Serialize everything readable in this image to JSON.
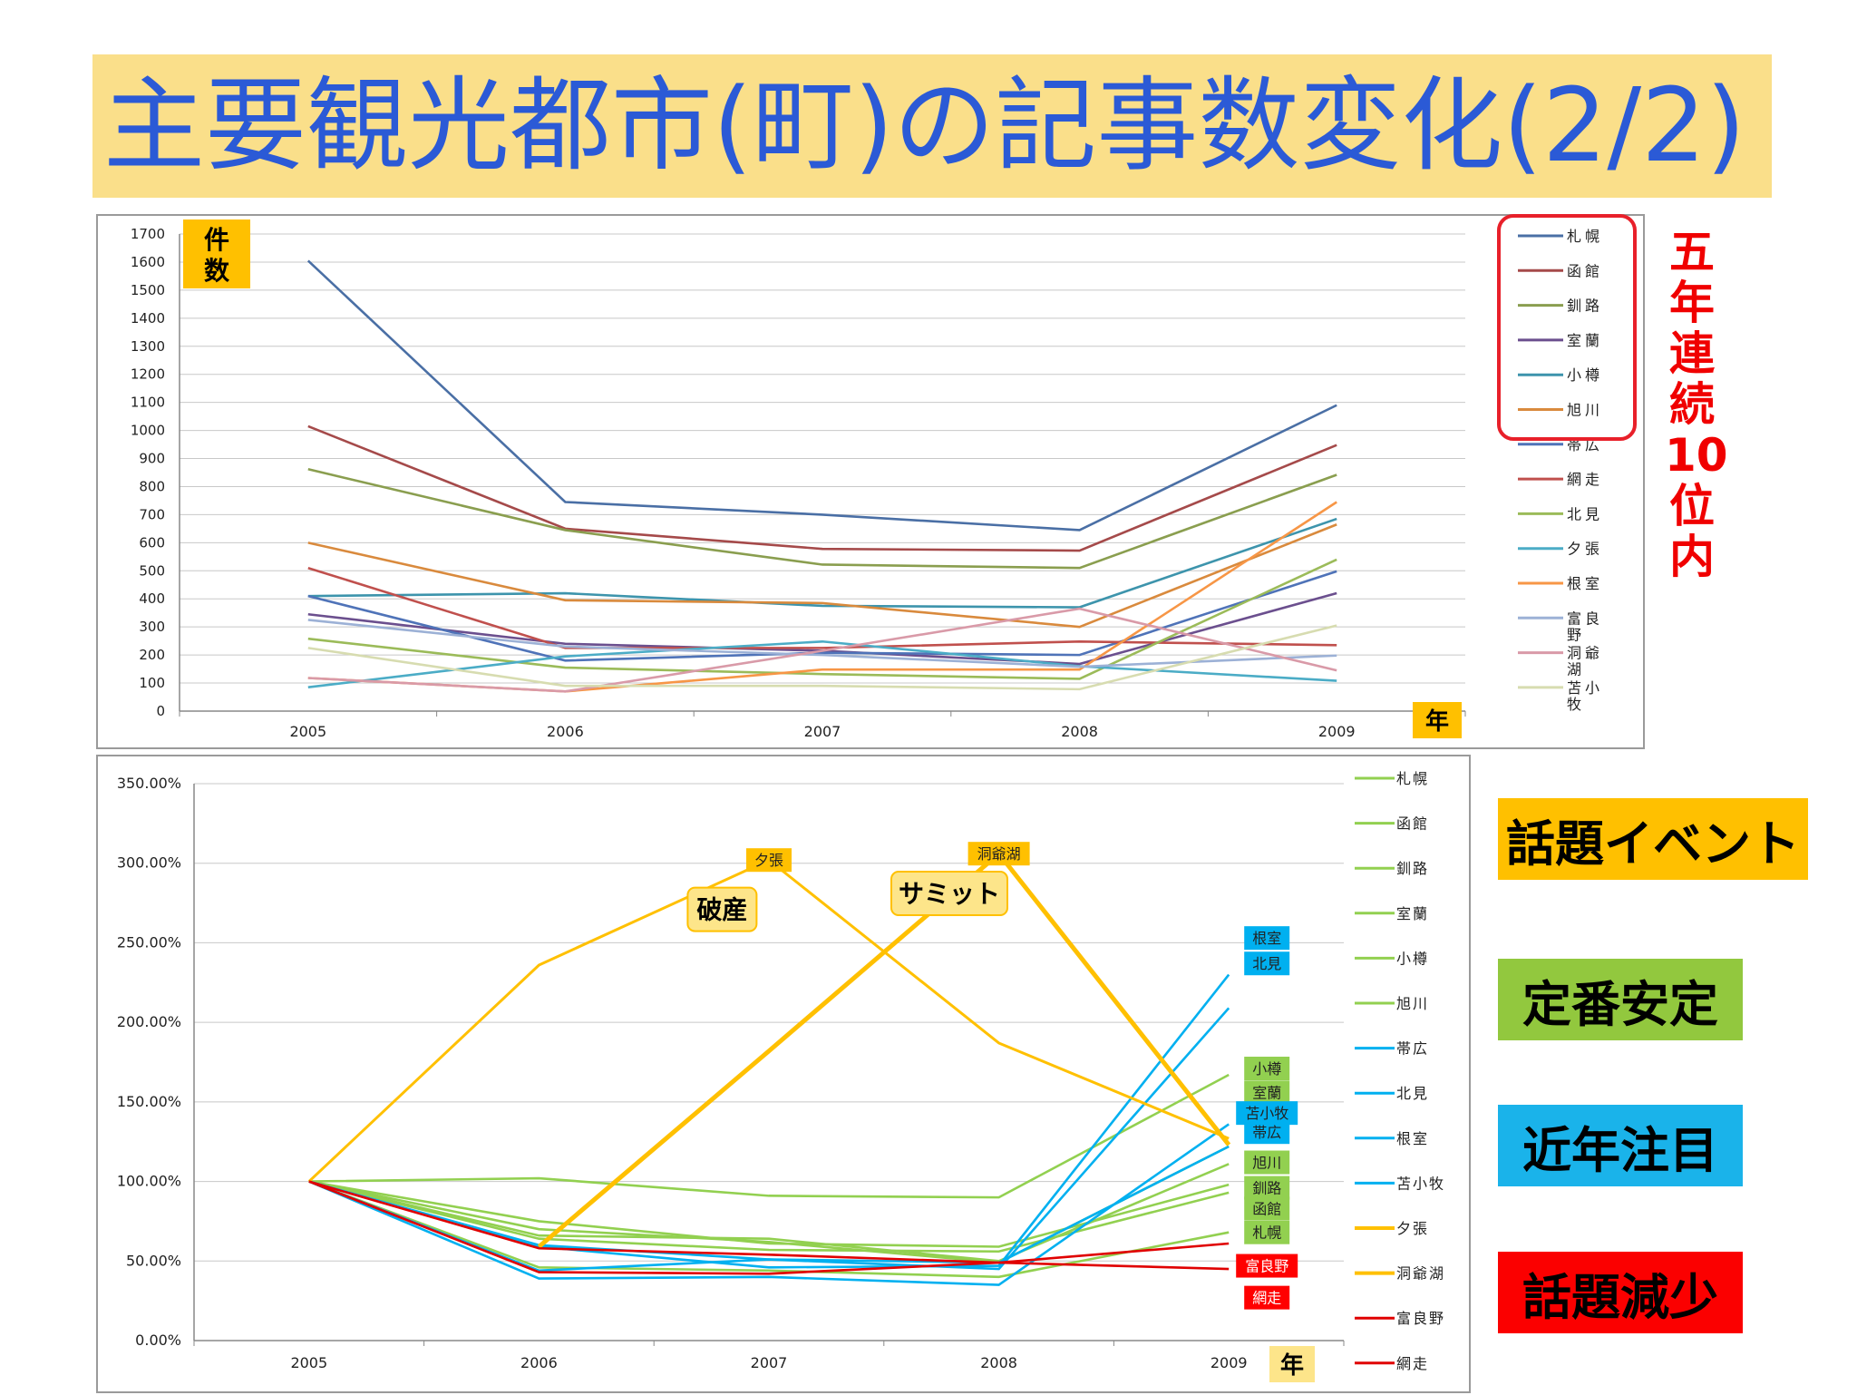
{
  "title": "主要観光都市(町)の記事数変化(2/2)",
  "colors": {
    "title_bg": "#fadf8a",
    "title_text": "#2b5ad6",
    "highlight_red": "#e8202a"
  },
  "side_note": "五年連続10位内",
  "categories_legend": [
    {
      "label": "話題イベント",
      "color": "#ffc000"
    },
    {
      "label": "定番安定",
      "color": "#92c83e"
    },
    {
      "label": "近年注目",
      "color": "#1ab3ea"
    },
    {
      "label": "話題減少",
      "color": "#fb0000"
    }
  ],
  "chart_data": [
    {
      "type": "line",
      "ylabel": "件数",
      "xlabel": "年",
      "ylim": [
        0,
        1700
      ],
      "yticks": [
        0,
        100,
        200,
        300,
        400,
        500,
        600,
        700,
        800,
        900,
        1000,
        1100,
        1200,
        1300,
        1400,
        1500,
        1600,
        1700
      ],
      "x": [
        "2005",
        "2006",
        "2007",
        "2008",
        "2009"
      ],
      "grid": "horizontal",
      "legend_position": "right",
      "series": [
        {
          "name": "札幌",
          "color": "#4a6fa5",
          "values": [
            1605,
            745,
            700,
            645,
            1090
          ]
        },
        {
          "name": "函館",
          "color": "#a54a4a",
          "values": [
            1015,
            650,
            578,
            572,
            948
          ]
        },
        {
          "name": "釧路",
          "color": "#8a9e4f",
          "values": [
            862,
            645,
            522,
            510,
            842
          ]
        },
        {
          "name": "室蘭",
          "color": "#6b4f8e",
          "values": [
            345,
            240,
            215,
            168,
            420
          ]
        },
        {
          "name": "小樽",
          "color": "#3d94ac",
          "values": [
            410,
            420,
            375,
            370,
            685
          ]
        },
        {
          "name": "旭川",
          "color": "#d98a3d",
          "values": [
            600,
            395,
            385,
            300,
            665
          ]
        },
        {
          "name": "帯広",
          "color": "#4f73b8",
          "values": [
            410,
            180,
            208,
            200,
            498
          ]
        },
        {
          "name": "網走",
          "color": "#c0504d",
          "values": [
            510,
            225,
            225,
            248,
            235
          ]
        },
        {
          "name": "北見",
          "color": "#9bbb59",
          "values": [
            258,
            155,
            132,
            115,
            540
          ]
        },
        {
          "name": "夕張",
          "color": "#4bacc6",
          "values": [
            85,
            195,
            248,
            160,
            108
          ]
        },
        {
          "name": "根室",
          "color": "#f79646",
          "values": [
            118,
            70,
            148,
            148,
            745
          ]
        },
        {
          "name": "富良野",
          "color": "#9cb1d6",
          "values": [
            325,
            230,
            200,
            158,
            198
          ]
        },
        {
          "name": "洞爺湖",
          "color": "#d99aa8",
          "values": [
            118,
            70,
            215,
            365,
            145
          ]
        },
        {
          "name": "苫小牧",
          "color": "#d7dcb0",
          "values": [
            225,
            90,
            90,
            78,
            305
          ]
        }
      ]
    },
    {
      "type": "line",
      "xlabel": "年",
      "ylim": [
        0,
        350
      ],
      "yticks": [
        "0.00%",
        "50.00%",
        "100.00%",
        "150.00%",
        "200.00%",
        "250.00%",
        "300.00%",
        "350.00%"
      ],
      "x": [
        "2005",
        "2006",
        "2007",
        "2008",
        "2009"
      ],
      "grid": "horizontal",
      "legend_position": "right",
      "series": [
        {
          "name": "札幌",
          "color": "#92d050",
          "values": [
            100,
            46,
            44,
            40,
            68
          ]
        },
        {
          "name": "函館",
          "color": "#92d050",
          "values": [
            100,
            64,
            57,
            56,
            93
          ]
        },
        {
          "name": "釧路",
          "color": "#92d050",
          "values": [
            100,
            75,
            61,
            59,
            98
          ]
        },
        {
          "name": "室蘭",
          "color": "#92d050",
          "values": [
            100,
            70,
            62,
            49,
            122
          ]
        },
        {
          "name": "小樽",
          "color": "#92d050",
          "values": [
            100,
            102,
            91,
            90,
            167
          ]
        },
        {
          "name": "旭川",
          "color": "#92d050",
          "values": [
            100,
            66,
            64,
            50,
            111
          ]
        },
        {
          "name": "帯広",
          "color": "#00b0f0",
          "values": [
            100,
            44,
            51,
            49,
            122
          ]
        },
        {
          "name": "北見",
          "color": "#00b0f0",
          "values": [
            100,
            60,
            51,
            45,
            209
          ]
        },
        {
          "name": "根室",
          "color": "#00b0f0",
          "values": [
            100,
            59,
            46,
            47,
            230
          ]
        },
        {
          "name": "苫小牧",
          "color": "#00b0f0",
          "values": [
            100,
            39,
            40,
            35,
            136
          ]
        },
        {
          "name": "夕張",
          "color": "#ffc000",
          "values": [
            100,
            236,
            302,
            187,
            127
          ],
          "width": 3
        },
        {
          "name": "洞爺湖",
          "color": "#ffc000",
          "values": [
            null,
            59,
            182,
            306,
            123
          ],
          "width": 5
        },
        {
          "name": "富良野",
          "color": "#e00000",
          "values": [
            100,
            58,
            54,
            49,
            45
          ]
        },
        {
          "name": "網走",
          "color": "#e00000",
          "values": [
            100,
            43,
            42,
            49,
            61
          ]
        }
      ],
      "annotations": [
        {
          "text": "夕張",
          "color": "#ffc000",
          "x": "2007",
          "y": 302
        },
        {
          "text": "洞爺湖",
          "color": "#ffc000",
          "x": "2008",
          "y": 306
        },
        {
          "text": "根室",
          "color": "#00b0f0",
          "x": "2009",
          "y": 253
        },
        {
          "text": "北見",
          "color": "#00b0f0",
          "x": "2009",
          "y": 237
        },
        {
          "text": "小樽",
          "color": "#92d050",
          "x": "2009",
          "y": 171
        },
        {
          "text": "室蘭",
          "color": "#92d050",
          "x": "2009",
          "y": 156
        },
        {
          "text": "苫小牧",
          "color": "#00b0f0",
          "x": "2009",
          "y": 143
        },
        {
          "text": "帯広",
          "color": "#00b0f0",
          "x": "2009",
          "y": 131
        },
        {
          "text": "旭川",
          "color": "#92d050",
          "x": "2009",
          "y": 112
        },
        {
          "text": "釧路",
          "color": "#92d050",
          "x": "2009",
          "y": 96
        },
        {
          "text": "函館",
          "color": "#92d050",
          "x": "2009",
          "y": 83
        },
        {
          "text": "札幌",
          "color": "#92d050",
          "x": "2009",
          "y": 68
        },
        {
          "text": "富良野",
          "color": "#ff0000",
          "x": "2009",
          "y": 47
        },
        {
          "text": "網走",
          "color": "#ff0000",
          "x": "2009",
          "y": 27
        }
      ],
      "callouts": [
        {
          "text": "破産",
          "x": "2006.8",
          "y": 271
        },
        {
          "text": "サミット",
          "x": "2007.8",
          "y": 281
        }
      ]
    }
  ]
}
